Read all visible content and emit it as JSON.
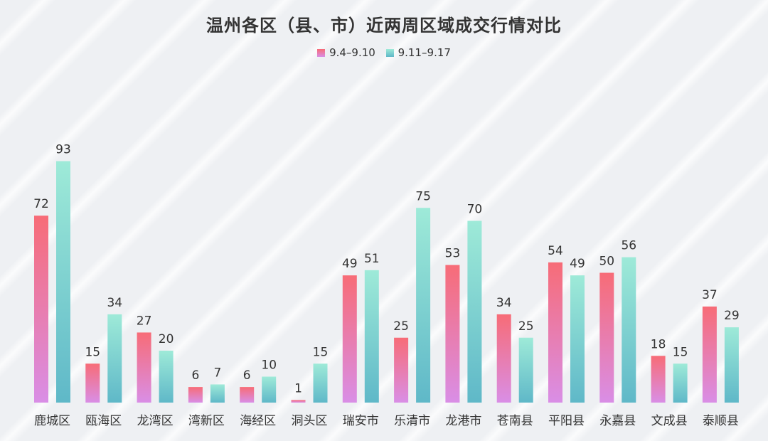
{
  "chart_data": {
    "type": "bar",
    "title": "温州各区（县、市）近两周区域成交行情对比",
    "categories": [
      "鹿城区",
      "瓯海区",
      "龙湾区",
      "湾新区",
      "海经区",
      "洞头区",
      "瑞安市",
      "乐清市",
      "龙港市",
      "苍南县",
      "平阳县",
      "永嘉县",
      "文成县",
      "泰顺县"
    ],
    "series": [
      {
        "name": "9.4–9.10",
        "values": [
          72,
          15,
          27,
          6,
          6,
          1,
          49,
          25,
          53,
          34,
          54,
          50,
          18,
          37
        ],
        "color_top": "#f76c77",
        "color_bottom": "#d98ee6"
      },
      {
        "name": "9.11–9.17",
        "values": [
          93,
          34,
          20,
          7,
          10,
          15,
          51,
          75,
          70,
          25,
          49,
          56,
          15,
          29
        ],
        "color_top": "#9eead8",
        "color_bottom": "#5fb8c8"
      }
    ],
    "ylim": [
      0,
      100
    ],
    "grid": false,
    "legend_position": "top-center",
    "data_labels": true
  }
}
